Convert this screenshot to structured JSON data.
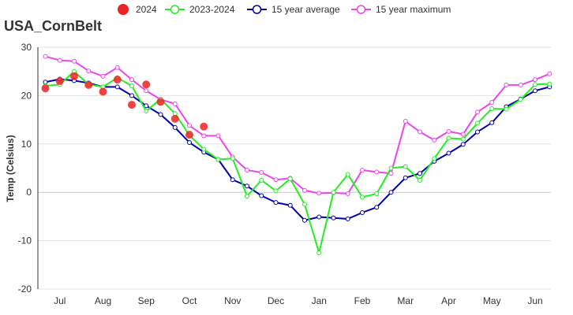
{
  "chart_data": {
    "type": "line",
    "title": "USA_CornBelt",
    "ylabel": "Temp (Celsius)",
    "xlabel": "",
    "ylim": [
      -20,
      30
    ],
    "yticks": [
      -20,
      -10,
      0,
      10,
      20,
      30
    ],
    "grid": "horizontal",
    "legend_position": "top",
    "month_labels": [
      "Jul",
      "Aug",
      "Sep",
      "Oct",
      "Nov",
      "Dec",
      "Jan",
      "Feb",
      "Mar",
      "Apr",
      "May",
      "Jun"
    ],
    "series": [
      {
        "name": "2024",
        "style": "scatter",
        "color": "#ee2222",
        "values": [
          21.5,
          23.0,
          24.0,
          22.2,
          20.8,
          23.3,
          18.1,
          22.3,
          18.7,
          15.2,
          11.9,
          13.6
        ]
      },
      {
        "name": "2023-2024",
        "style": "line",
        "color": "#22ee22",
        "values": [
          22.0,
          22.3,
          25.0,
          22.3,
          21.8,
          23.7,
          22.0,
          16.8,
          19.3,
          16.3,
          11.8,
          8.9,
          6.8,
          7.0,
          -0.8,
          2.5,
          0.3,
          2.8,
          -2.5,
          -12.5,
          0.0,
          3.7,
          -1.0,
          -0.3,
          5.0,
          5.3,
          2.5,
          7.0,
          11.2,
          11.0,
          14.3,
          17.3,
          17.2,
          19.2,
          22.3,
          22.4
        ]
      },
      {
        "name": "15 year average",
        "style": "line",
        "color": "#0000aa",
        "values": [
          22.8,
          23.4,
          23.1,
          22.6,
          21.8,
          21.8,
          20.0,
          17.9,
          16.1,
          13.4,
          10.3,
          8.3,
          6.8,
          2.6,
          1.3,
          -0.7,
          -2.1,
          -2.7,
          -5.8,
          -5.1,
          -5.3,
          -5.5,
          -4.2,
          -3.1,
          0.0,
          3.0,
          3.9,
          6.4,
          8.1,
          9.9,
          12.5,
          14.4,
          17.7,
          19.3,
          21.0,
          21.8
        ]
      },
      {
        "name": "15 year maximum",
        "style": "line",
        "color": "#ee44ee",
        "values": [
          28.1,
          27.3,
          27.1,
          25.1,
          24.0,
          25.8,
          23.3,
          21.0,
          19.2,
          18.3,
          13.8,
          11.7,
          11.7,
          7.3,
          4.6,
          4.1,
          2.6,
          2.9,
          0.4,
          -0.2,
          -0.1,
          -0.3,
          4.6,
          4.2,
          3.9,
          14.7,
          12.5,
          10.8,
          12.6,
          12.0,
          16.6,
          18.6,
          22.2,
          22.2,
          23.3,
          24.5
        ]
      }
    ]
  }
}
